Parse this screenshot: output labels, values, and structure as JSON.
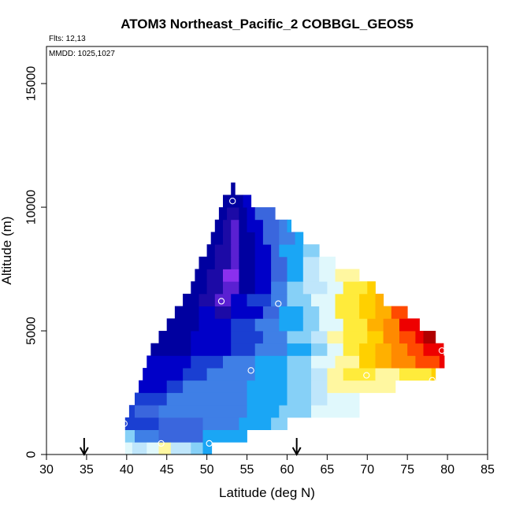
{
  "chart_data": {
    "type": "heatmap",
    "title": "ATOM3 Northeast_Pacific_2 COBBGL_GEOS5",
    "subtitle_flights": "Flts: 12,13",
    "subtitle_dates": "MMDD: 1025,1027",
    "xlabel": "Latitude (deg N)",
    "ylabel": "Altitude (m)",
    "xlim": [
      30,
      85
    ],
    "ylim": [
      0,
      16500
    ],
    "xticks": [
      "30",
      "35",
      "40",
      "45",
      "50",
      "55",
      "60",
      "65",
      "70",
      "75",
      "80",
      "85"
    ],
    "yticks": [
      "0",
      "5000",
      "10000",
      "15000"
    ],
    "grid": false,
    "legend": "none",
    "marker_latitudes": [
      34.7,
      61.2
    ],
    "colors": [
      "#fff7a0",
      "#e0f8fc",
      "#bfe6fb",
      "#86d0f7",
      "#1aa6f5",
      "#3f7fe6",
      "#3a66dd",
      "#1a3fd2",
      "#0000c8",
      "#0000a0",
      "#1c0aa6",
      "#5a20d2",
      "#8a30ee",
      "#ffeb3b",
      "#ffd000",
      "#ffb000",
      "#ff8a00",
      "#ff4a00",
      "#ee0000",
      "#b00000"
    ],
    "rows": [
      {
        "alt": 0,
        "cells": [
          [
            39.8,
            40.7,
            1
          ],
          [
            40.7,
            42.5,
            2
          ],
          [
            42.5,
            44,
            1
          ],
          [
            44,
            45.5,
            0
          ],
          [
            45.5,
            48,
            2
          ],
          [
            48,
            49.5,
            3
          ],
          [
            49.5,
            50.6,
            4
          ]
        ]
      },
      {
        "alt": 500,
        "cells": [
          [
            39.8,
            41,
            3
          ],
          [
            41,
            44,
            5
          ],
          [
            44,
            49.5,
            6
          ],
          [
            49.5,
            55,
            4
          ]
        ]
      },
      {
        "alt": 1000,
        "cells": [
          [
            39.8,
            40.3,
            7
          ],
          [
            40.3,
            44,
            7
          ],
          [
            44,
            49.5,
            6
          ],
          [
            49.5,
            54,
            5
          ],
          [
            54,
            58,
            4
          ],
          [
            58,
            60,
            3
          ]
        ]
      },
      {
        "alt": 1500,
        "cells": [
          [
            40.3,
            41,
            7
          ],
          [
            41,
            44,
            6
          ],
          [
            44,
            55,
            5
          ],
          [
            55,
            59,
            4
          ],
          [
            59,
            63,
            3
          ],
          [
            63,
            69,
            1
          ]
        ]
      },
      {
        "alt": 2000,
        "cells": [
          [
            41,
            42,
            7
          ],
          [
            42,
            45,
            7
          ],
          [
            45,
            55,
            5
          ],
          [
            55,
            60,
            4
          ],
          [
            60,
            63,
            3
          ],
          [
            63,
            65,
            2
          ],
          [
            65,
            69,
            1
          ]
        ]
      },
      {
        "alt": 2500,
        "cells": [
          [
            41.5,
            45,
            8
          ],
          [
            45,
            47,
            7
          ],
          [
            47,
            55,
            5
          ],
          [
            55,
            60,
            4
          ],
          [
            60,
            63,
            3
          ],
          [
            63,
            65,
            2
          ],
          [
            65,
            67,
            0
          ],
          [
            67,
            73.5,
            0
          ]
        ]
      },
      {
        "alt": 3000,
        "cells": [
          [
            42,
            47,
            8
          ],
          [
            47,
            50,
            7
          ],
          [
            50,
            56,
            5
          ],
          [
            56,
            60,
            4
          ],
          [
            60,
            63,
            3
          ],
          [
            63,
            65,
            2
          ],
          [
            65,
            67,
            0
          ],
          [
            67,
            71,
            13
          ],
          [
            71,
            74,
            0
          ],
          [
            74,
            78,
            13
          ],
          [
            78,
            78.5,
            14
          ]
        ]
      },
      {
        "alt": 3500,
        "cells": [
          [
            42.5,
            48,
            8
          ],
          [
            48,
            52,
            7
          ],
          [
            52,
            56,
            5
          ],
          [
            56,
            60,
            4
          ],
          [
            60,
            63,
            3
          ],
          [
            63,
            66,
            1
          ],
          [
            66,
            69,
            0
          ],
          [
            69,
            71,
            14
          ],
          [
            71,
            73,
            15
          ],
          [
            73,
            76,
            16
          ],
          [
            76,
            79,
            17
          ],
          [
            79,
            79.6,
            18
          ]
        ]
      },
      {
        "alt": 4000,
        "cells": [
          [
            43,
            48,
            9
          ],
          [
            48,
            53,
            8
          ],
          [
            53,
            56,
            7
          ],
          [
            56,
            60,
            5
          ],
          [
            60,
            63,
            4
          ],
          [
            63,
            65,
            3
          ],
          [
            65,
            67,
            1
          ],
          [
            67,
            69,
            13
          ],
          [
            69,
            71,
            14
          ],
          [
            71,
            73,
            15
          ],
          [
            73,
            75,
            16
          ],
          [
            75,
            77,
            17
          ],
          [
            77,
            79.5,
            18
          ]
        ]
      },
      {
        "alt": 4500,
        "cells": [
          [
            44,
            48,
            9
          ],
          [
            48,
            53,
            8
          ],
          [
            53,
            57,
            7
          ],
          [
            57,
            60,
            5
          ],
          [
            60,
            63,
            3
          ],
          [
            63,
            65,
            2
          ],
          [
            65,
            67,
            0
          ],
          [
            67,
            70,
            13
          ],
          [
            70,
            72,
            14
          ],
          [
            72,
            74,
            16
          ],
          [
            74,
            76,
            17
          ],
          [
            76,
            77,
            18
          ],
          [
            77,
            78.5,
            19
          ]
        ]
      },
      {
        "alt": 5000,
        "cells": [
          [
            45,
            49,
            9
          ],
          [
            49,
            53,
            8
          ],
          [
            53,
            56,
            7
          ],
          [
            56,
            59,
            5
          ],
          [
            59,
            62,
            4
          ],
          [
            62,
            64,
            3
          ],
          [
            64,
            67,
            1
          ],
          [
            67,
            70,
            13
          ],
          [
            70,
            72,
            15
          ],
          [
            72,
            74,
            16
          ],
          [
            74,
            76.5,
            18
          ]
        ]
      },
      {
        "alt": 5500,
        "cells": [
          [
            46,
            49,
            9
          ],
          [
            49,
            51,
            8
          ],
          [
            51,
            53,
            10
          ],
          [
            53,
            57,
            8
          ],
          [
            57,
            59,
            6
          ],
          [
            59,
            62,
            4
          ],
          [
            62,
            64,
            3
          ],
          [
            64,
            66,
            1
          ],
          [
            66,
            69,
            13
          ],
          [
            69,
            71,
            14
          ],
          [
            71,
            73,
            15
          ],
          [
            73,
            75,
            17
          ]
        ]
      },
      {
        "alt": 6000,
        "cells": [
          [
            47,
            49,
            9
          ],
          [
            49,
            51,
            10
          ],
          [
            51,
            53,
            11
          ],
          [
            53,
            55,
            8
          ],
          [
            55,
            58,
            7
          ],
          [
            58,
            60,
            5
          ],
          [
            60,
            63,
            3
          ],
          [
            63,
            66,
            1
          ],
          [
            66,
            69,
            13
          ],
          [
            69,
            71,
            14
          ],
          [
            71,
            72,
            15
          ]
        ]
      },
      {
        "alt": 6500,
        "cells": [
          [
            48,
            50,
            9
          ],
          [
            50,
            52,
            10
          ],
          [
            52,
            54,
            11
          ],
          [
            54,
            56,
            9
          ],
          [
            56,
            58,
            8
          ],
          [
            58,
            60,
            5
          ],
          [
            60,
            62,
            3
          ],
          [
            62,
            65,
            2
          ],
          [
            65,
            67,
            1
          ],
          [
            67,
            70,
            13
          ],
          [
            70,
            71,
            14
          ]
        ]
      },
      {
        "alt": 7000,
        "cells": [
          [
            48.5,
            50,
            9
          ],
          [
            50,
            52,
            10
          ],
          [
            52,
            54,
            12
          ],
          [
            54,
            56,
            9
          ],
          [
            56,
            58,
            8
          ],
          [
            58,
            60,
            6
          ],
          [
            60,
            62,
            4
          ],
          [
            62,
            64,
            2
          ],
          [
            64,
            66,
            1
          ],
          [
            66,
            69,
            0
          ]
        ]
      },
      {
        "alt": 7500,
        "cells": [
          [
            49,
            51,
            9
          ],
          [
            51,
            53,
            10
          ],
          [
            53,
            54,
            11
          ],
          [
            54,
            56,
            9
          ],
          [
            56,
            58,
            8
          ],
          [
            58,
            60,
            6
          ],
          [
            60,
            62,
            4
          ],
          [
            62,
            64,
            2
          ],
          [
            64,
            66,
            1
          ]
        ]
      },
      {
        "alt": 8000,
        "cells": [
          [
            50,
            51,
            9
          ],
          [
            51,
            53,
            10
          ],
          [
            53,
            54,
            11
          ],
          [
            54,
            56,
            9
          ],
          [
            56,
            58,
            8
          ],
          [
            58,
            59,
            6
          ],
          [
            59,
            62,
            4
          ],
          [
            62,
            64,
            3
          ]
        ]
      },
      {
        "alt": 8500,
        "cells": [
          [
            50.5,
            52,
            9
          ],
          [
            52,
            53,
            10
          ],
          [
            53,
            54,
            11
          ],
          [
            54,
            56,
            9
          ],
          [
            56,
            57,
            8
          ],
          [
            57,
            59,
            6
          ],
          [
            59,
            61,
            5
          ],
          [
            61,
            62,
            4
          ]
        ]
      },
      {
        "alt": 9000,
        "cells": [
          [
            51,
            52,
            9
          ],
          [
            52,
            53,
            10
          ],
          [
            53,
            54,
            11
          ],
          [
            54,
            55,
            9
          ],
          [
            55,
            57,
            8
          ],
          [
            57,
            59,
            6
          ],
          [
            59,
            60,
            5
          ],
          [
            60,
            60.5,
            4
          ]
        ]
      },
      {
        "alt": 9500,
        "cells": [
          [
            51.5,
            52.5,
            9
          ],
          [
            52.5,
            54,
            10
          ],
          [
            54,
            55,
            9
          ],
          [
            55,
            56,
            8
          ],
          [
            56,
            58.5,
            6
          ]
        ]
      },
      {
        "alt": 10000,
        "cells": [
          [
            52,
            53,
            9
          ],
          [
            53,
            54.5,
            9
          ],
          [
            54.5,
            55.5,
            8
          ]
        ]
      },
      {
        "alt": 10500,
        "cells": [
          [
            53,
            53.5,
            9
          ]
        ]
      }
    ],
    "obs_points": [
      [
        53.2,
        10250
      ],
      [
        51.8,
        6200
      ],
      [
        58.9,
        6100
      ],
      [
        55.5,
        3400
      ],
      [
        39.7,
        1250
      ],
      [
        44.3,
        450
      ],
      [
        50.3,
        450
      ],
      [
        69.9,
        3200
      ],
      [
        79.3,
        4200
      ],
      [
        78.1,
        3000
      ]
    ]
  }
}
